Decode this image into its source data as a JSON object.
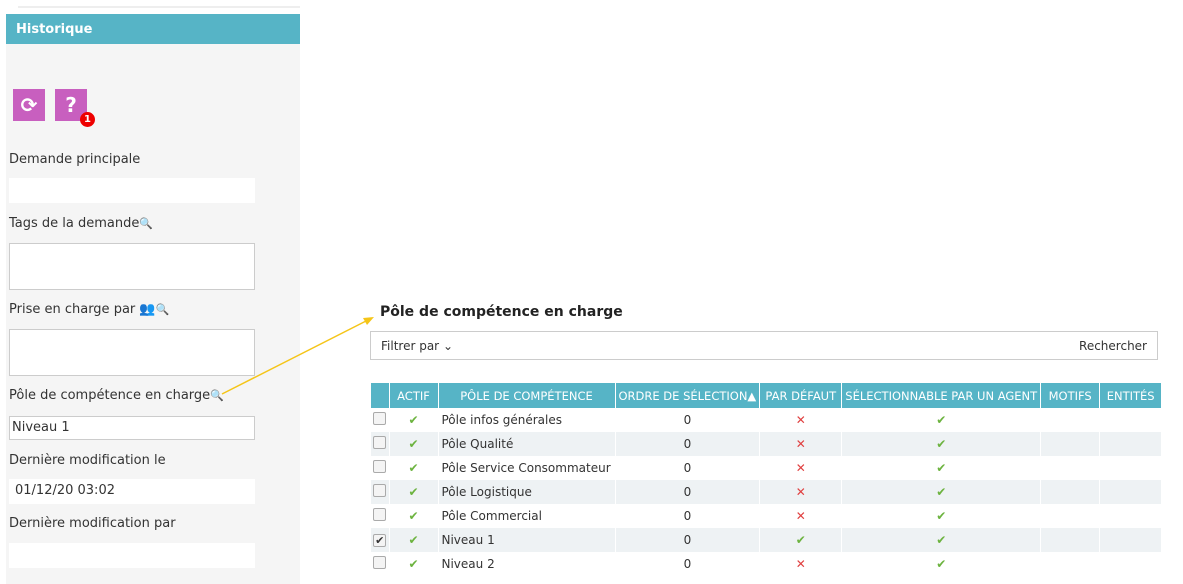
{
  "sidebar": {
    "header": "Historique",
    "badge_count": "1",
    "fields": {
      "demande_principale": "Demande principale",
      "tags": "Tags de la demande",
      "prise": "Prise en charge par",
      "pole": "Pôle de compétence en charge",
      "pole_value": "Niveau 1",
      "modif_le": "Dernière modification le",
      "modif_le_value": "01/12/20 03:02",
      "modif_par": "Dernière modification par"
    }
  },
  "panel": {
    "title": "Pôle de compétence en charge",
    "filter_label": "Filtrer par",
    "search_label": "Rechercher"
  },
  "table": {
    "headers": [
      "ACTIF",
      "PÔLE DE COMPÉTENCE",
      "ORDRE DE SÉLECTION▲",
      "PAR DÉFAUT",
      "SÉLECTIONNABLE PAR UN AGENT",
      "MOTIFS",
      "ENTITÉS"
    ],
    "rows": [
      {
        "checked": false,
        "actif": true,
        "name": "Pôle infos générales",
        "ordre": "0",
        "defaut": false,
        "selectable": true
      },
      {
        "checked": false,
        "actif": true,
        "name": "Pôle Qualité",
        "ordre": "0",
        "defaut": false,
        "selectable": true
      },
      {
        "checked": false,
        "actif": true,
        "name": "Pôle Service Consommateur",
        "ordre": "0",
        "defaut": false,
        "selectable": true
      },
      {
        "checked": false,
        "actif": true,
        "name": "Pôle Logistique",
        "ordre": "0",
        "defaut": false,
        "selectable": true
      },
      {
        "checked": false,
        "actif": true,
        "name": "Pôle Commercial",
        "ordre": "0",
        "defaut": false,
        "selectable": true
      },
      {
        "checked": true,
        "actif": true,
        "name": "Niveau 1",
        "ordre": "0",
        "defaut": true,
        "selectable": true
      },
      {
        "checked": false,
        "actif": true,
        "name": "Niveau 2",
        "ordre": "0",
        "defaut": false,
        "selectable": true
      }
    ]
  },
  "colors": {
    "accent": "#56b4c6",
    "icon_bg": "#c85fbf",
    "arrow": "#f5c518"
  }
}
